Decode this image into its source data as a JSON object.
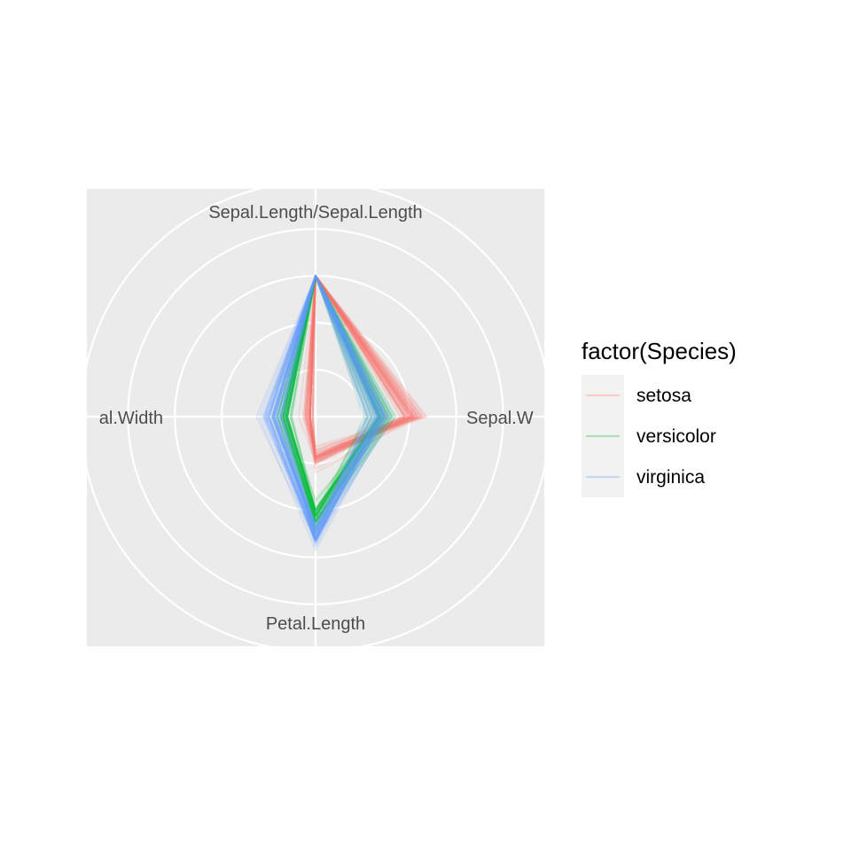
{
  "chart_data": {
    "type": "radar",
    "axes": [
      "Sepal.Length/Sepal.Length",
      "Sepal.W",
      "Petal.Length",
      "al.Width"
    ],
    "rlim": [
      0,
      1.7
    ],
    "grid_circles": [
      0.333,
      0.667,
      1.0,
      1.333,
      1.667
    ],
    "grid": true,
    "legend_position": "right",
    "legend_title": "factor(Species)",
    "series": [
      {
        "name": "setosa",
        "color": "#F8766D",
        "profiles": [
          [
            1.0,
            0.69,
            0.28,
            0.04
          ],
          [
            1.0,
            0.61,
            0.29,
            0.04
          ],
          [
            1.0,
            0.68,
            0.28,
            0.04
          ],
          [
            1.0,
            0.67,
            0.33,
            0.04
          ],
          [
            1.0,
            0.72,
            0.28,
            0.04
          ],
          [
            1.0,
            0.72,
            0.31,
            0.07
          ],
          [
            1.0,
            0.74,
            0.3,
            0.06
          ],
          [
            1.0,
            0.68,
            0.3,
            0.04
          ],
          [
            1.0,
            0.66,
            0.32,
            0.05
          ],
          [
            1.0,
            0.63,
            0.31,
            0.02
          ],
          [
            1.0,
            0.69,
            0.28,
            0.04
          ],
          [
            1.0,
            0.71,
            0.33,
            0.04
          ],
          [
            1.0,
            0.63,
            0.29,
            0.02
          ],
          [
            1.0,
            0.7,
            0.26,
            0.02
          ],
          [
            1.0,
            0.69,
            0.21,
            0.03
          ],
          [
            1.0,
            0.77,
            0.26,
            0.07
          ],
          [
            1.0,
            0.72,
            0.24,
            0.07
          ],
          [
            1.0,
            0.69,
            0.27,
            0.06
          ],
          [
            1.0,
            0.67,
            0.3,
            0.05
          ],
          [
            1.0,
            0.75,
            0.29,
            0.06
          ],
          [
            1.0,
            0.63,
            0.31,
            0.04
          ],
          [
            1.0,
            0.73,
            0.29,
            0.08
          ],
          [
            1.0,
            0.78,
            0.22,
            0.04
          ],
          [
            1.0,
            0.65,
            0.33,
            0.09
          ],
          [
            1.0,
            0.71,
            0.4,
            0.04
          ],
          [
            1.0,
            0.6,
            0.32,
            0.04
          ],
          [
            1.0,
            0.68,
            0.32,
            0.08
          ],
          [
            1.0,
            0.67,
            0.29,
            0.04
          ],
          [
            1.0,
            0.65,
            0.27,
            0.04
          ],
          [
            1.0,
            0.68,
            0.34,
            0.04
          ],
          [
            1.0,
            0.65,
            0.33,
            0.04
          ],
          [
            1.0,
            0.63,
            0.28,
            0.07
          ],
          [
            1.0,
            0.79,
            0.29,
            0.02
          ],
          [
            1.0,
            0.76,
            0.25,
            0.04
          ],
          [
            1.0,
            0.63,
            0.31,
            0.04
          ],
          [
            1.0,
            0.64,
            0.24,
            0.04
          ],
          [
            1.0,
            0.64,
            0.24,
            0.04
          ],
          [
            1.0,
            0.73,
            0.29,
            0.02
          ],
          [
            1.0,
            0.68,
            0.3,
            0.05
          ],
          [
            1.0,
            0.67,
            0.29,
            0.04
          ],
          [
            1.0,
            0.7,
            0.26,
            0.06
          ],
          [
            1.0,
            0.51,
            0.29,
            0.07
          ],
          [
            1.0,
            0.73,
            0.3,
            0.05
          ],
          [
            1.0,
            0.7,
            0.32,
            0.12
          ],
          [
            1.0,
            0.75,
            0.37,
            0.08
          ],
          [
            1.0,
            0.63,
            0.29,
            0.06
          ],
          [
            1.0,
            0.75,
            0.31,
            0.04
          ],
          [
            1.0,
            0.7,
            0.3,
            0.04
          ],
          [
            1.0,
            0.7,
            0.28,
            0.04
          ],
          [
            1.0,
            0.66,
            0.28,
            0.04
          ]
        ]
      },
      {
        "name": "versicolor",
        "color": "#00BA38",
        "profiles": [
          [
            1.0,
            0.46,
            0.67,
            0.2
          ],
          [
            1.0,
            0.5,
            0.7,
            0.23
          ],
          [
            1.0,
            0.45,
            0.71,
            0.22
          ],
          [
            1.0,
            0.42,
            0.73,
            0.24
          ],
          [
            1.0,
            0.43,
            0.71,
            0.23
          ],
          [
            1.0,
            0.49,
            0.79,
            0.23
          ],
          [
            1.0,
            0.52,
            0.75,
            0.25
          ],
          [
            1.0,
            0.49,
            0.67,
            0.2
          ],
          [
            1.0,
            0.44,
            0.7,
            0.2
          ],
          [
            1.0,
            0.52,
            0.75,
            0.27
          ],
          [
            1.0,
            0.4,
            0.7,
            0.2
          ],
          [
            1.0,
            0.51,
            0.71,
            0.25
          ],
          [
            1.0,
            0.37,
            0.67,
            0.17
          ],
          [
            1.0,
            0.48,
            0.77,
            0.23
          ],
          [
            1.0,
            0.52,
            0.64,
            0.23
          ],
          [
            1.0,
            0.46,
            0.66,
            0.21
          ],
          [
            1.0,
            0.54,
            0.8,
            0.27
          ],
          [
            1.0,
            0.47,
            0.71,
            0.17
          ],
          [
            1.0,
            0.35,
            0.73,
            0.24
          ],
          [
            1.0,
            0.45,
            0.7,
            0.2
          ],
          [
            1.0,
            0.54,
            0.81,
            0.31
          ],
          [
            1.0,
            0.46,
            0.66,
            0.21
          ],
          [
            1.0,
            0.4,
            0.78,
            0.24
          ],
          [
            1.0,
            0.46,
            0.77,
            0.2
          ],
          [
            1.0,
            0.45,
            0.67,
            0.2
          ],
          [
            1.0,
            0.45,
            0.67,
            0.21
          ],
          [
            1.0,
            0.41,
            0.71,
            0.21
          ],
          [
            1.0,
            0.45,
            0.75,
            0.25
          ],
          [
            1.0,
            0.48,
            0.75,
            0.25
          ],
          [
            1.0,
            0.46,
            0.61,
            0.18
          ],
          [
            1.0,
            0.44,
            0.69,
            0.2
          ],
          [
            1.0,
            0.44,
            0.67,
            0.18
          ],
          [
            1.0,
            0.47,
            0.67,
            0.21
          ],
          [
            1.0,
            0.45,
            0.85,
            0.27
          ],
          [
            1.0,
            0.56,
            0.83,
            0.28
          ],
          [
            1.0,
            0.57,
            0.75,
            0.27
          ],
          [
            1.0,
            0.46,
            0.7,
            0.22
          ],
          [
            1.0,
            0.37,
            0.7,
            0.21
          ],
          [
            1.0,
            0.54,
            0.73,
            0.23
          ],
          [
            1.0,
            0.45,
            0.73,
            0.24
          ],
          [
            1.0,
            0.47,
            0.8,
            0.22
          ],
          [
            1.0,
            0.49,
            0.75,
            0.23
          ],
          [
            1.0,
            0.45,
            0.69,
            0.21
          ],
          [
            1.0,
            0.46,
            0.66,
            0.2
          ],
          [
            1.0,
            0.48,
            0.75,
            0.23
          ],
          [
            1.0,
            0.53,
            0.74,
            0.21
          ],
          [
            1.0,
            0.51,
            0.74,
            0.23
          ],
          [
            1.0,
            0.47,
            0.69,
            0.21
          ],
          [
            1.0,
            0.49,
            0.59,
            0.22
          ],
          [
            1.0,
            0.49,
            0.72,
            0.23
          ]
        ]
      },
      {
        "name": "virginica",
        "color": "#619CFF",
        "profiles": [
          [
            1.0,
            0.52,
            0.95,
            0.4
          ],
          [
            1.0,
            0.47,
            0.88,
            0.33
          ],
          [
            1.0,
            0.42,
            0.83,
            0.3
          ],
          [
            1.0,
            0.46,
            0.89,
            0.29
          ],
          [
            1.0,
            0.46,
            0.89,
            0.34
          ],
          [
            1.0,
            0.39,
            0.87,
            0.27
          ],
          [
            1.0,
            0.51,
            0.92,
            0.35
          ],
          [
            1.0,
            0.4,
            0.86,
            0.25
          ],
          [
            1.0,
            0.37,
            0.87,
            0.27
          ],
          [
            1.0,
            0.5,
            0.83,
            0.35
          ],
          [
            1.0,
            0.49,
            0.78,
            0.31
          ],
          [
            1.0,
            0.42,
            0.83,
            0.3
          ],
          [
            1.0,
            0.44,
            0.81,
            0.31
          ],
          [
            1.0,
            0.44,
            0.88,
            0.35
          ],
          [
            1.0,
            0.48,
            0.88,
            0.42
          ],
          [
            1.0,
            0.5,
            0.83,
            0.36
          ],
          [
            1.0,
            0.46,
            0.85,
            0.28
          ],
          [
            1.0,
            0.49,
            0.87,
            0.29
          ],
          [
            1.0,
            0.34,
            0.9,
            0.3
          ],
          [
            1.0,
            0.37,
            0.83,
            0.25
          ],
          [
            1.0,
            0.46,
            0.83,
            0.33
          ],
          [
            1.0,
            0.5,
            0.88,
            0.36
          ],
          [
            1.0,
            0.36,
            0.87,
            0.26
          ],
          [
            1.0,
            0.43,
            0.78,
            0.29
          ],
          [
            1.0,
            0.49,
            0.85,
            0.31
          ],
          [
            1.0,
            0.44,
            0.83,
            0.25
          ],
          [
            1.0,
            0.45,
            0.77,
            0.29
          ],
          [
            1.0,
            0.49,
            0.8,
            0.29
          ],
          [
            1.0,
            0.44,
            0.88,
            0.33
          ],
          [
            1.0,
            0.42,
            0.81,
            0.22
          ],
          [
            1.0,
            0.38,
            0.82,
            0.26
          ],
          [
            1.0,
            0.48,
            0.81,
            0.25
          ],
          [
            1.0,
            0.44,
            0.88,
            0.34
          ],
          [
            1.0,
            0.44,
            0.81,
            0.24
          ],
          [
            1.0,
            0.43,
            0.92,
            0.23
          ],
          [
            1.0,
            0.39,
            0.79,
            0.3
          ],
          [
            1.0,
            0.54,
            0.89,
            0.38
          ],
          [
            1.0,
            0.48,
            0.86,
            0.28
          ],
          [
            1.0,
            0.5,
            0.8,
            0.3
          ],
          [
            1.0,
            0.45,
            0.78,
            0.3
          ],
          [
            1.0,
            0.46,
            0.84,
            0.36
          ],
          [
            1.0,
            0.45,
            0.74,
            0.33
          ],
          [
            1.0,
            0.47,
            0.88,
            0.33
          ],
          [
            1.0,
            0.47,
            0.87,
            0.34
          ],
          [
            1.0,
            0.49,
            0.85,
            0.37
          ],
          [
            1.0,
            0.45,
            0.78,
            0.34
          ],
          [
            1.0,
            0.4,
            0.79,
            0.3
          ],
          [
            1.0,
            0.46,
            0.8,
            0.31
          ],
          [
            1.0,
            0.55,
            0.87,
            0.37
          ],
          [
            1.0,
            0.51,
            0.86,
            0.31
          ]
        ]
      }
    ]
  }
}
